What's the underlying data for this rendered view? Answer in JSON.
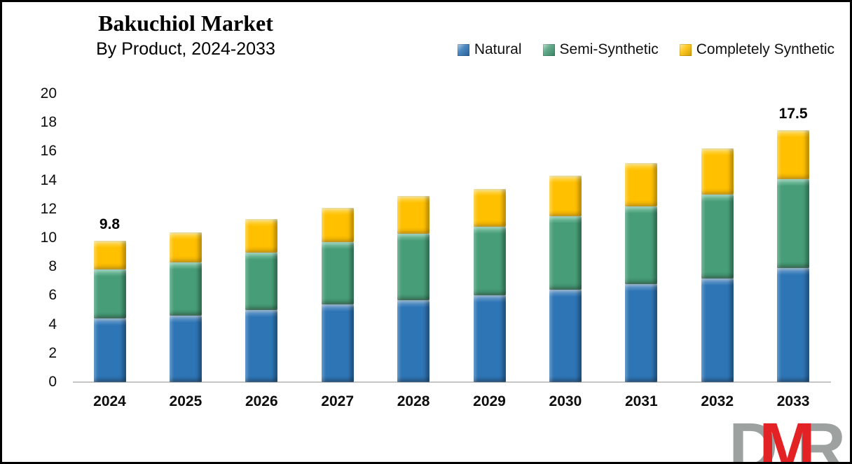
{
  "chart_data": {
    "type": "bar",
    "stacked": true,
    "title": "Bakuchiol Market",
    "subtitle": "By Product, 2024-2033",
    "categories": [
      "2024",
      "2025",
      "2026",
      "2027",
      "2028",
      "2029",
      "2030",
      "2031",
      "2032",
      "2033"
    ],
    "series": [
      {
        "name": "Natural",
        "color": "#2E75B6",
        "values": [
          4.4,
          4.6,
          5.0,
          5.4,
          5.7,
          6.0,
          6.4,
          6.8,
          7.2,
          7.9
        ]
      },
      {
        "name": "Semi-Synthetic",
        "color": "#479D77",
        "values": [
          3.4,
          3.7,
          4.0,
          4.3,
          4.6,
          4.8,
          5.1,
          5.4,
          5.8,
          6.2
        ]
      },
      {
        "name": "Completely Synthetic",
        "color": "#FFC000",
        "values": [
          2.0,
          2.1,
          2.3,
          2.4,
          2.6,
          2.6,
          2.8,
          3.0,
          3.2,
          3.4
        ]
      }
    ],
    "totals": [
      9.8,
      10.4,
      11.3,
      12.1,
      12.9,
      13.4,
      14.3,
      15.2,
      16.2,
      17.5
    ],
    "bar_labels": [
      "9.8",
      "",
      "",
      "",
      "",
      "",
      "",
      "",
      "",
      "17.5"
    ],
    "xlabel": "",
    "ylabel": "",
    "ylim": [
      0,
      20
    ],
    "ytick_step": 2,
    "grid": false,
    "legend_position": "top-right",
    "axis_line_color": "#c6c6c6"
  },
  "logo": {
    "text": "DMR",
    "letters": [
      {
        "char": "D",
        "color": "#9DA2A1"
      },
      {
        "char": "M",
        "color": "#E32226"
      },
      {
        "char": "R",
        "color": "#9DA2A1"
      }
    ]
  }
}
